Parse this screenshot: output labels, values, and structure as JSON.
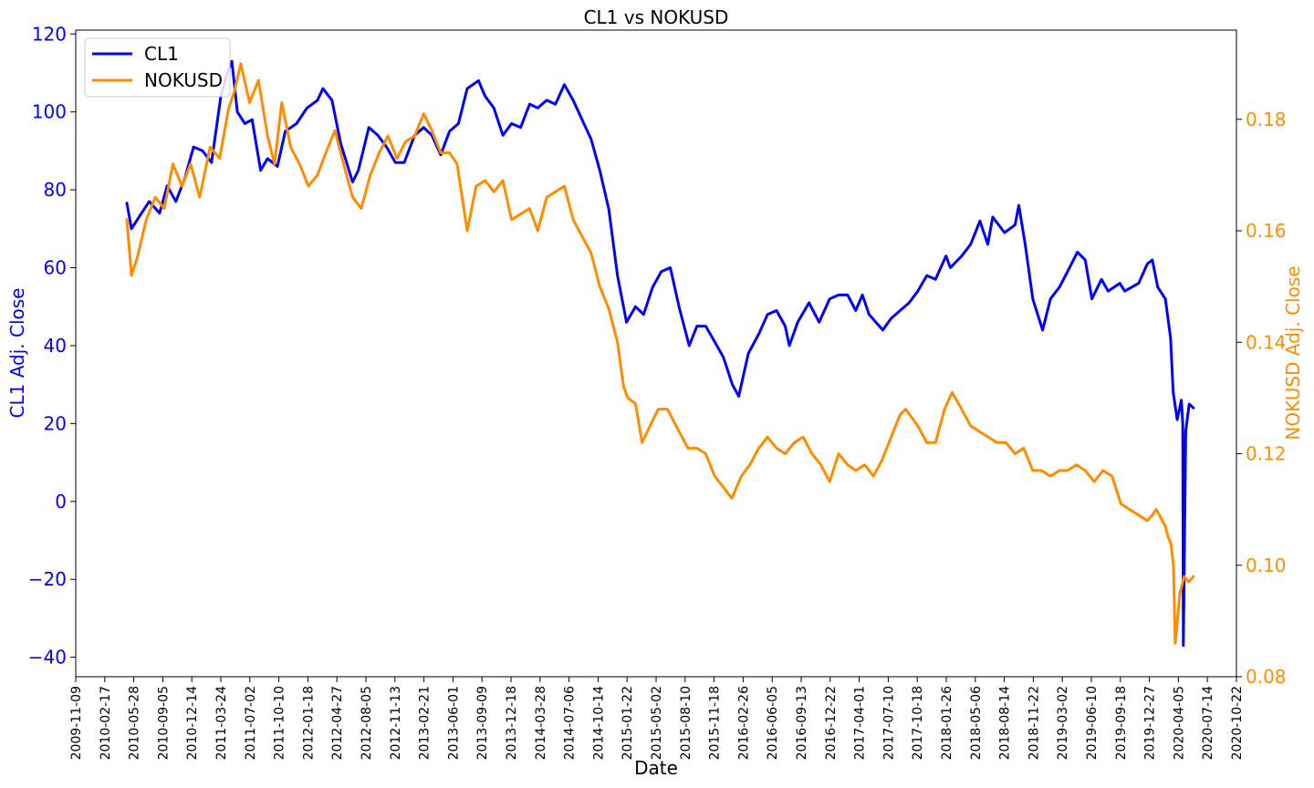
{
  "chart_data": {
    "type": "line",
    "title": "CL1 vs NOKUSD",
    "xlabel": "Date",
    "ylabel_left": "CL1 Adj. Close",
    "ylabel_right": "NOKUSD Adj. Close",
    "ylim_left": [
      -45,
      121
    ],
    "ylim_right": [
      0.08,
      0.196
    ],
    "xlim": [
      "2009-11-09",
      "2020-10-22"
    ],
    "yticks_left": [
      -40,
      -20,
      0,
      20,
      40,
      60,
      80,
      100,
      120
    ],
    "yticks_left_labels": [
      "−40",
      "−20",
      "0",
      "20",
      "40",
      "60",
      "80",
      "100",
      "120"
    ],
    "yticks_right": [
      0.08,
      0.1,
      0.12,
      0.14,
      0.16,
      0.18
    ],
    "yticks_right_labels": [
      "0.08",
      "0.10",
      "0.12",
      "0.14",
      "0.16",
      "0.18"
    ],
    "xticks": [
      "2009-11-09",
      "2010-02-17",
      "2010-05-28",
      "2010-09-05",
      "2010-12-14",
      "2011-03-24",
      "2011-07-02",
      "2011-10-10",
      "2012-01-18",
      "2012-04-27",
      "2012-08-05",
      "2012-11-13",
      "2013-02-21",
      "2013-06-01",
      "2013-09-09",
      "2013-12-18",
      "2014-03-28",
      "2014-07-06",
      "2014-10-14",
      "2015-01-22",
      "2015-05-02",
      "2015-08-10",
      "2015-11-18",
      "2016-02-26",
      "2016-06-05",
      "2016-09-13",
      "2016-12-22",
      "2017-04-01",
      "2017-07-10",
      "2017-10-18",
      "2018-01-26",
      "2018-05-06",
      "2018-08-14",
      "2018-11-22",
      "2019-03-02",
      "2019-06-10",
      "2019-09-18",
      "2019-12-27",
      "2020-04-05",
      "2020-07-14",
      "2020-10-22"
    ],
    "legend_position": "upper-left",
    "grid": false,
    "series": [
      {
        "name": "CL1",
        "axis": "left",
        "color": "#0000ff",
        "x": [
          "2010-05-04",
          "2010-05-20",
          "2010-06-15",
          "2010-07-20",
          "2010-08-25",
          "2010-09-20",
          "2010-10-20",
          "2010-11-20",
          "2010-12-20",
          "2011-01-20",
          "2011-02-20",
          "2011-03-24",
          "2011-04-15",
          "2011-05-01",
          "2011-05-20",
          "2011-06-15",
          "2011-07-10",
          "2011-08-08",
          "2011-09-01",
          "2011-10-05",
          "2011-11-01",
          "2011-12-10",
          "2012-01-15",
          "2012-02-20",
          "2012-03-10",
          "2012-04-10",
          "2012-05-10",
          "2012-06-20",
          "2012-07-10",
          "2012-08-15",
          "2012-09-15",
          "2012-10-15",
          "2012-11-15",
          "2012-12-15",
          "2013-01-20",
          "2013-02-20",
          "2013-03-20",
          "2013-04-20",
          "2013-05-20",
          "2013-06-20",
          "2013-07-20",
          "2013-08-28",
          "2013-09-20",
          "2013-10-20",
          "2013-11-20",
          "2013-12-20",
          "2014-01-20",
          "2014-02-20",
          "2014-03-20",
          "2014-04-20",
          "2014-05-20",
          "2014-06-20",
          "2014-07-20",
          "2014-08-20",
          "2014-09-20",
          "2014-10-20",
          "2014-11-20",
          "2014-12-20",
          "2015-01-20",
          "2015-02-20",
          "2015-03-20",
          "2015-04-20",
          "2015-05-20",
          "2015-06-20",
          "2015-07-20",
          "2015-08-24",
          "2015-09-20",
          "2015-10-20",
          "2015-11-20",
          "2015-12-20",
          "2016-01-20",
          "2016-02-11",
          "2016-03-15",
          "2016-04-20",
          "2016-05-20",
          "2016-06-20",
          "2016-07-20",
          "2016-08-03",
          "2016-09-01",
          "2016-10-10",
          "2016-11-14",
          "2016-12-20",
          "2017-01-20",
          "2017-02-20",
          "2017-03-20",
          "2017-04-12",
          "2017-05-05",
          "2017-06-21",
          "2017-07-20",
          "2017-08-20",
          "2017-09-20",
          "2017-10-20",
          "2017-11-20",
          "2017-12-20",
          "2018-01-25",
          "2018-02-09",
          "2018-03-20",
          "2018-04-20",
          "2018-05-22",
          "2018-06-18",
          "2018-07-05",
          "2018-08-15",
          "2018-09-20",
          "2018-10-03",
          "2018-10-25",
          "2018-11-20",
          "2018-12-24",
          "2019-01-20",
          "2019-02-20",
          "2019-03-20",
          "2019-04-23",
          "2019-05-20",
          "2019-06-12",
          "2019-07-15",
          "2019-08-07",
          "2019-09-16",
          "2019-10-03",
          "2019-11-20",
          "2019-12-20",
          "2020-01-06",
          "2020-01-25",
          "2020-02-20",
          "2020-03-09",
          "2020-03-18",
          "2020-04-01",
          "2020-04-15",
          "2020-04-20",
          "2020-04-22",
          "2020-04-30",
          "2020-05-12",
          "2020-05-27"
        ],
        "y": [
          76.6,
          70,
          73,
          77,
          74,
          81,
          77,
          83,
          91,
          90,
          87,
          104,
          110,
          113,
          100,
          97,
          98,
          85,
          88,
          86,
          95,
          97,
          101,
          103,
          106,
          103,
          92,
          82,
          85,
          96,
          94,
          91,
          87,
          87,
          94,
          96,
          94,
          89,
          95,
          97,
          106,
          108,
          104,
          101,
          94,
          97,
          96,
          102,
          101,
          103,
          102,
          107,
          103,
          98,
          93,
          85,
          75,
          58,
          46,
          50,
          48,
          55,
          59,
          60,
          50,
          40,
          45,
          45,
          41,
          37,
          30,
          27,
          38,
          43,
          48,
          49,
          45,
          40,
          46,
          51,
          46,
          52,
          53,
          53,
          49,
          53,
          48,
          44,
          47,
          49,
          51,
          54,
          58,
          57,
          63,
          60,
          63,
          66,
          72,
          66,
          73,
          69,
          71,
          76,
          66,
          52,
          44,
          52,
          55,
          59,
          64,
          62,
          52,
          57,
          54,
          56,
          54,
          56,
          61,
          62,
          55,
          52,
          42,
          28,
          21,
          26,
          20,
          -37,
          18,
          25,
          24
        ]
      },
      {
        "name": "NOKUSD",
        "axis": "right",
        "color": "#ff8c00",
        "x": [
          "2010-05-04",
          "2010-05-20",
          "2010-06-08",
          "2010-07-10",
          "2010-08-10",
          "2010-09-10",
          "2010-10-10",
          "2010-11-10",
          "2010-12-10",
          "2011-01-10",
          "2011-02-15",
          "2011-03-20",
          "2011-04-20",
          "2011-05-10",
          "2011-06-01",
          "2011-07-01",
          "2011-08-01",
          "2011-09-01",
          "2011-09-25",
          "2011-10-20",
          "2011-11-20",
          "2011-12-20",
          "2012-01-20",
          "2012-02-20",
          "2012-03-20",
          "2012-04-20",
          "2012-05-20",
          "2012-06-20",
          "2012-07-20",
          "2012-08-20",
          "2012-09-20",
          "2012-10-20",
          "2012-11-20",
          "2012-12-20",
          "2013-01-20",
          "2013-02-20",
          "2013-03-20",
          "2013-04-20",
          "2013-05-20",
          "2013-06-15",
          "2013-07-20",
          "2013-08-20",
          "2013-09-20",
          "2013-10-20",
          "2013-11-20",
          "2013-12-20",
          "2014-01-20",
          "2014-02-20",
          "2014-03-20",
          "2014-04-20",
          "2014-05-20",
          "2014-06-20",
          "2014-07-20",
          "2014-08-20",
          "2014-09-20",
          "2014-10-20",
          "2014-11-20",
          "2014-12-20",
          "2015-01-10",
          "2015-01-25",
          "2015-02-20",
          "2015-03-15",
          "2015-04-20",
          "2015-05-10",
          "2015-06-10",
          "2015-07-20",
          "2015-08-20",
          "2015-09-20",
          "2015-10-20",
          "2015-11-20",
          "2015-12-20",
          "2016-01-18",
          "2016-02-20",
          "2016-03-20",
          "2016-04-20",
          "2016-05-20",
          "2016-06-20",
          "2016-07-20",
          "2016-08-20",
          "2016-09-20",
          "2016-10-20",
          "2016-11-20",
          "2016-12-20",
          "2017-01-20",
          "2017-02-20",
          "2017-03-20",
          "2017-04-20",
          "2017-05-20",
          "2017-06-20",
          "2017-07-20",
          "2017-08-20",
          "2017-09-08",
          "2017-10-20",
          "2017-11-20",
          "2017-12-20",
          "2018-01-20",
          "2018-02-15",
          "2018-03-20",
          "2018-04-20",
          "2018-05-20",
          "2018-06-20",
          "2018-07-20",
          "2018-08-20",
          "2018-09-20",
          "2018-10-20",
          "2018-11-20",
          "2018-12-20",
          "2019-01-20",
          "2019-02-20",
          "2019-03-20",
          "2019-04-20",
          "2019-05-20",
          "2019-06-20",
          "2019-07-20",
          "2019-08-20",
          "2019-09-20",
          "2019-10-20",
          "2019-11-20",
          "2019-12-20",
          "2020-01-06",
          "2020-01-20",
          "2020-02-20",
          "2020-03-01",
          "2020-03-10",
          "2020-03-19",
          "2020-03-25",
          "2020-04-10",
          "2020-04-25",
          "2020-05-10",
          "2020-05-27"
        ],
        "y": [
          0.162,
          0.152,
          0.155,
          0.162,
          0.166,
          0.164,
          0.172,
          0.168,
          0.172,
          0.166,
          0.175,
          0.173,
          0.182,
          0.185,
          0.19,
          0.183,
          0.187,
          0.177,
          0.172,
          0.183,
          0.175,
          0.172,
          0.168,
          0.17,
          0.174,
          0.178,
          0.172,
          0.166,
          0.164,
          0.17,
          0.174,
          0.177,
          0.173,
          0.176,
          0.177,
          0.181,
          0.178,
          0.174,
          0.174,
          0.172,
          0.16,
          0.168,
          0.169,
          0.167,
          0.169,
          0.162,
          0.163,
          0.164,
          0.16,
          0.166,
          0.167,
          0.168,
          0.162,
          0.159,
          0.156,
          0.15,
          0.146,
          0.14,
          0.132,
          0.13,
          0.129,
          0.122,
          0.126,
          0.128,
          0.128,
          0.124,
          0.121,
          0.121,
          0.12,
          0.116,
          0.114,
          0.112,
          0.116,
          0.118,
          0.121,
          0.123,
          0.121,
          0.12,
          0.122,
          0.123,
          0.12,
          0.118,
          0.115,
          0.12,
          0.118,
          0.117,
          0.118,
          0.116,
          0.119,
          0.123,
          0.127,
          0.128,
          0.125,
          0.122,
          0.122,
          0.128,
          0.131,
          0.128,
          0.125,
          0.124,
          0.123,
          0.122,
          0.122,
          0.12,
          0.121,
          0.117,
          0.117,
          0.116,
          0.117,
          0.117,
          0.118,
          0.117,
          0.115,
          0.117,
          0.116,
          0.111,
          0.11,
          0.109,
          0.108,
          0.109,
          0.11,
          0.107,
          0.105,
          0.104,
          0.1,
          0.086,
          0.095,
          0.098,
          0.097,
          0.098
        ]
      }
    ]
  }
}
